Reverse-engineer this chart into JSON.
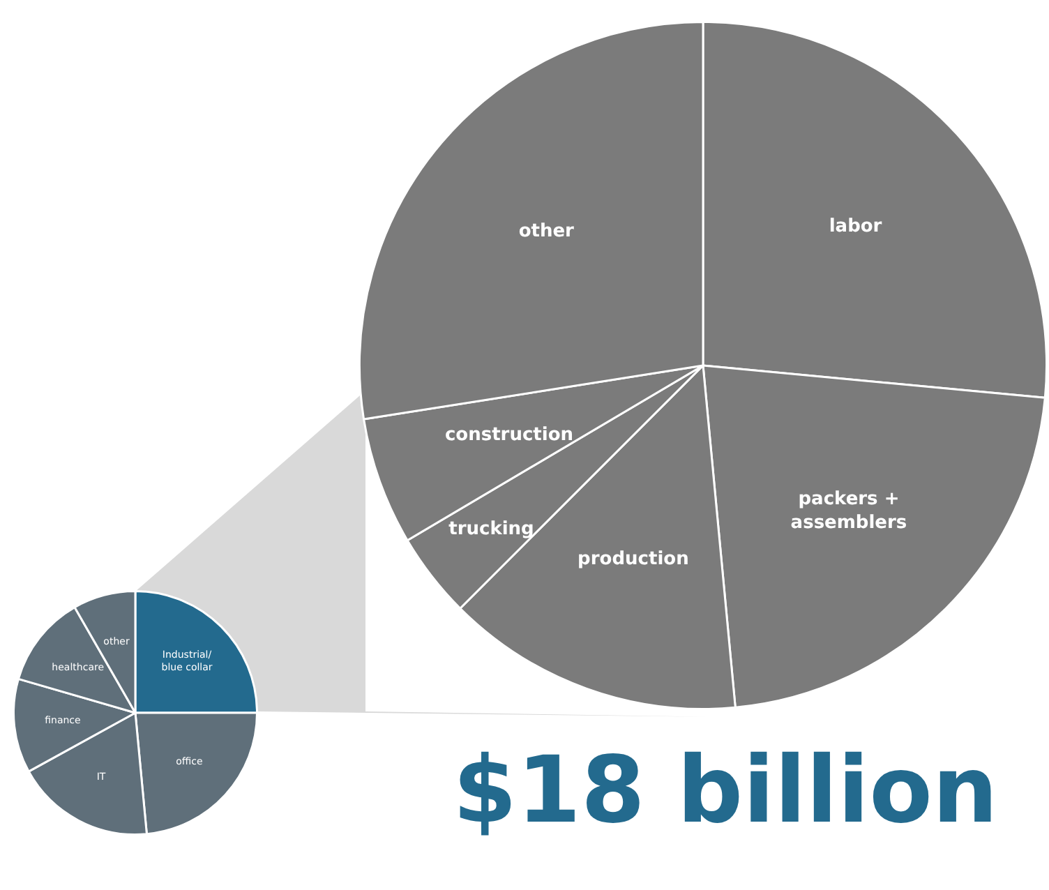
{
  "chart_data": [
    {
      "type": "pie",
      "categories": [
        "Industrial/ blue collar",
        "office",
        "IT",
        "finance",
        "healthcare",
        "other"
      ],
      "values": [
        25,
        23.5,
        18.5,
        12.5,
        12.2,
        8.3
      ],
      "colors": [
        "#236a8e",
        "#5f6f7a",
        "#5f6f7a",
        "#5f6f7a",
        "#5f6f7a",
        "#5f6f7a"
      ]
    },
    {
      "type": "pie",
      "categories": [
        "labor",
        "packers + assemblers",
        "production",
        "trucking",
        "construction",
        "other"
      ],
      "values": [
        26.5,
        22,
        14,
        4,
        6,
        27.5
      ],
      "colors": [
        "#7b7b7b",
        "#7b7b7b",
        "#7b7b7b",
        "#7b7b7b",
        "#7b7b7b",
        "#7b7b7b"
      ],
      "annotations": [
        "$18 billion"
      ]
    }
  ]
}
